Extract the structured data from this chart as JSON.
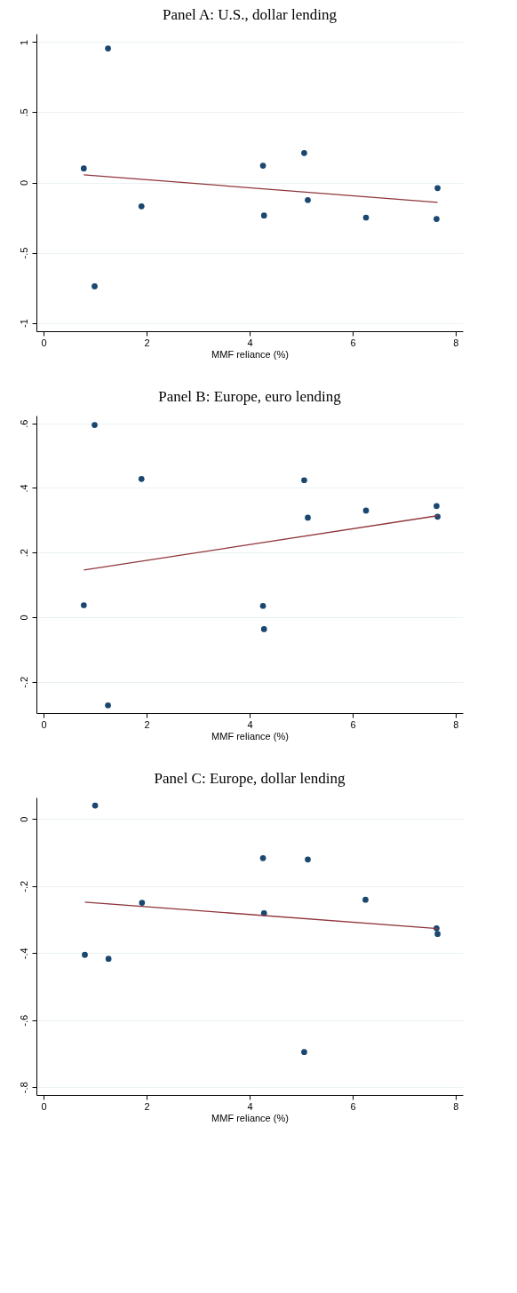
{
  "chart_data": [
    {
      "type": "scatter",
      "title": "Panel A: U.S., dollar lending",
      "xlabel": "MMF reliance (%)",
      "xlim": [
        -0.14,
        8.14
      ],
      "xticks": [
        0,
        2,
        4,
        6,
        8
      ],
      "ylim": [
        -1.06,
        1.06
      ],
      "yticks": [
        {
          "value": -1,
          "label": "-1"
        },
        {
          "value": -0.5,
          "label": "-.5"
        },
        {
          "value": 0,
          "label": "0"
        },
        {
          "value": 0.5,
          "label": ".5"
        },
        {
          "value": 1,
          "label": "1"
        }
      ],
      "grid": "y",
      "series": [
        {
          "type": "scatter",
          "marker": "circle",
          "color": "#1a476f",
          "x": [
            1.25,
            0.78,
            1.9,
            0.99,
            4.26,
            4.28,
            5.06,
            5.13,
            6.26,
            7.65,
            7.63
          ],
          "values": [
            0.955,
            0.1,
            -0.17,
            -0.74,
            0.12,
            -0.235,
            0.21,
            -0.125,
            -0.25,
            -0.04,
            -0.26
          ]
        },
        {
          "type": "line",
          "color": "#90353b",
          "x": [
            0.78,
            7.65
          ],
          "values": [
            0.055,
            -0.142
          ]
        }
      ]
    },
    {
      "type": "scatter",
      "title": "Panel B: Europe, euro lending",
      "xlabel": "MMF reliance (%)",
      "xlim": [
        -0.14,
        8.14
      ],
      "xticks": [
        0,
        2,
        4,
        6,
        8
      ],
      "ylim": [
        -0.297,
        0.624
      ],
      "yticks": [
        {
          "value": -0.2,
          "label": "-.2"
        },
        {
          "value": 0,
          "label": "0"
        },
        {
          "value": 0.2,
          "label": ".2"
        },
        {
          "value": 0.4,
          "label": ".4"
        },
        {
          "value": 0.6,
          "label": ".6"
        }
      ],
      "grid": "y",
      "series": [
        {
          "type": "scatter",
          "marker": "circle",
          "color": "#1a476f",
          "x": [
            0.99,
            1.9,
            5.06,
            7.63,
            6.26,
            5.13,
            7.65,
            0.78,
            4.26,
            4.28,
            1.25
          ],
          "values": [
            0.595,
            0.428,
            0.424,
            0.344,
            0.33,
            0.308,
            0.311,
            0.037,
            0.035,
            -0.037,
            -0.273
          ]
        },
        {
          "type": "line",
          "color": "#90353b",
          "x": [
            0.78,
            7.65
          ],
          "values": [
            0.146,
            0.314
          ]
        }
      ]
    },
    {
      "type": "scatter",
      "title": "Panel C: Europe, dollar lending",
      "xlabel": "MMF reliance (%)",
      "xlim": [
        -0.14,
        8.14
      ],
      "xticks": [
        0,
        2,
        4,
        6,
        8
      ],
      "ylim": [
        -0.823,
        0.064
      ],
      "yticks": [
        {
          "value": -0.8,
          "label": "-.8"
        },
        {
          "value": -0.6,
          "label": "-.6"
        },
        {
          "value": -0.4,
          "label": "-.4"
        },
        {
          "value": -0.2,
          "label": "-.2"
        },
        {
          "value": 0,
          "label": "0"
        }
      ],
      "grid": "y",
      "series": [
        {
          "type": "scatter",
          "marker": "circle",
          "color": "#1a476f",
          "x": [
            1.0,
            4.26,
            5.13,
            6.25,
            1.91,
            4.28,
            7.63,
            7.65,
            0.8,
            1.26,
            5.06
          ],
          "values": [
            0.04,
            -0.117,
            -0.121,
            -0.241,
            -0.25,
            -0.281,
            -0.326,
            -0.343,
            -0.405,
            -0.417,
            -0.695
          ]
        },
        {
          "type": "line",
          "color": "#90353b",
          "x": [
            0.8,
            7.65
          ],
          "values": [
            -0.248,
            -0.327
          ]
        }
      ]
    }
  ]
}
